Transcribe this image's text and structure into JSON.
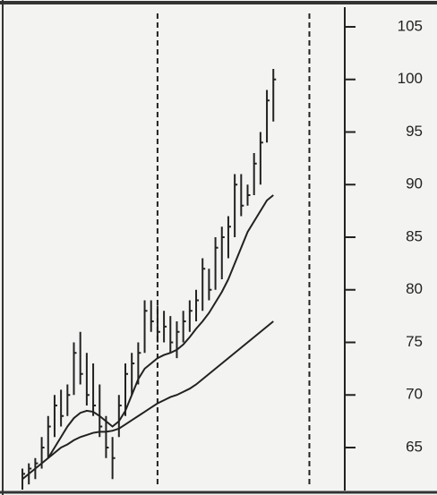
{
  "chart_data": {
    "type": "ohlc",
    "x": [
      0,
      1,
      2,
      3,
      4,
      5,
      6,
      7,
      8,
      9,
      10,
      11,
      12,
      13,
      14,
      15,
      16,
      17,
      18,
      19,
      20,
      21,
      22,
      23,
      24,
      25,
      26,
      27,
      28,
      29,
      30,
      31,
      32,
      33,
      34,
      35,
      36,
      37,
      38,
      39
    ],
    "high": [
      63,
      63.5,
      64,
      66,
      68,
      70,
      70.5,
      71,
      75,
      76,
      74,
      73,
      71,
      68,
      66,
      70,
      73,
      74,
      75,
      79,
      79,
      78.5,
      78,
      77.5,
      77,
      78,
      79,
      80,
      83,
      82,
      85,
      86,
      87,
      91,
      91,
      90,
      93,
      95,
      99,
      101
    ],
    "low": [
      61,
      61.5,
      62,
      63,
      64,
      66,
      67,
      68,
      70,
      71,
      69,
      68,
      66,
      64,
      62,
      66,
      68,
      70,
      71,
      74,
      76,
      75,
      75,
      74,
      73.5,
      75,
      76,
      77,
      78,
      79,
      80,
      81,
      83,
      85,
      87,
      88,
      89,
      90,
      94,
      96
    ],
    "close": [
      62.5,
      63,
      63.5,
      65,
      67,
      69,
      68,
      70,
      74,
      72,
      70,
      69,
      67,
      65,
      64,
      69,
      72,
      73,
      74,
      78,
      77,
      76,
      76.5,
      75,
      76,
      77,
      78,
      79,
      82,
      80,
      84,
      85,
      86,
      90,
      88,
      89,
      92,
      94,
      98,
      100
    ],
    "lines": [
      {
        "values": [
          null,
          null,
          null,
          null,
          64,
          65,
          66,
          67,
          67.8,
          68.3,
          68.5,
          68.4,
          68,
          67.5,
          67,
          67.5,
          68.5,
          70,
          71.5,
          72.5,
          73,
          73.5,
          73.8,
          74,
          74.3,
          74.8,
          75.5,
          76.3,
          77,
          77.8,
          78.8,
          79.8,
          81,
          82.5,
          84,
          85.5,
          86.5,
          87.5,
          88.5,
          89
        ],
        "color": "#222"
      },
      {
        "values": [
          62,
          62.5,
          63,
          63.5,
          64,
          64.5,
          65,
          65.3,
          65.7,
          66,
          66.2,
          66.4,
          66.5,
          66.5,
          66.6,
          66.8,
          67.2,
          67.6,
          68,
          68.4,
          68.8,
          69.2,
          69.5,
          69.8,
          70,
          70.3,
          70.6,
          71,
          71.5,
          72,
          72.5,
          73,
          73.5,
          74,
          74.5,
          75,
          75.5,
          76,
          76.5,
          77
        ],
        "color": "#222"
      }
    ],
    "vlines": [
      21,
      44.6
    ],
    "xlim": [
      -0.7,
      50.1
    ],
    "ylim": [
      61,
      107
    ],
    "yticks": [
      65,
      70,
      75,
      80,
      85,
      90,
      95,
      100,
      105
    ],
    "color": "#222"
  }
}
